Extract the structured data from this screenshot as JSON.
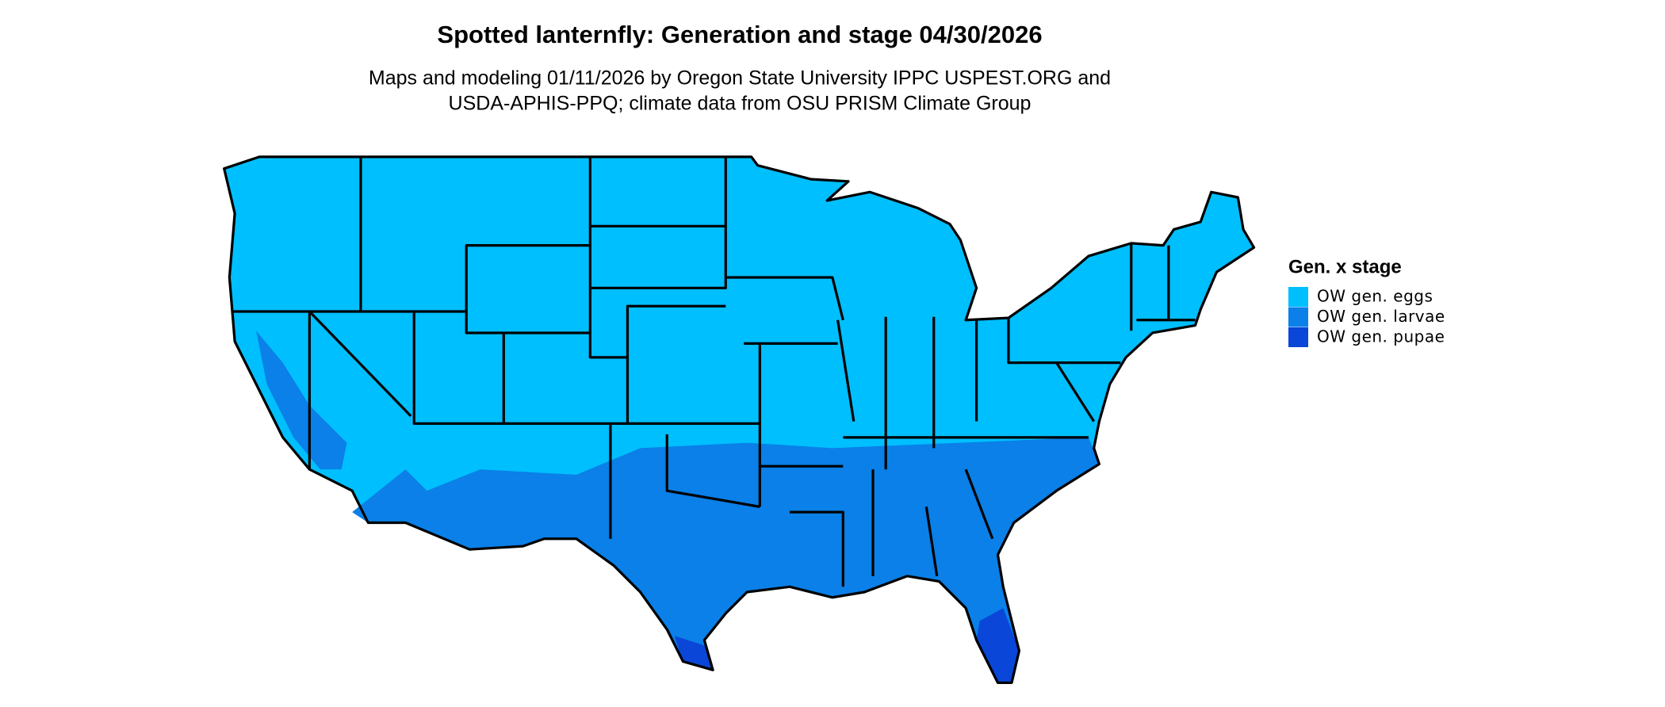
{
  "header": {
    "title": "Spotted lanternfly: Generation and stage 04/30/2026",
    "subtitle_lines": [
      "Maps and modeling 01/11/2026 by Oregon State University IPPC USPEST.ORG and",
      "USDA-APHIS-PPQ; climate data from OSU PRISM Climate Group"
    ]
  },
  "legend": {
    "title": "Gen. x stage",
    "items": [
      {
        "label": "OW gen. eggs",
        "color": "#00bfff"
      },
      {
        "label": "OW gen. larvae",
        "color": "#0a80e8"
      },
      {
        "label": "OW gen. pupae",
        "color": "#0a46d8"
      }
    ]
  }
}
